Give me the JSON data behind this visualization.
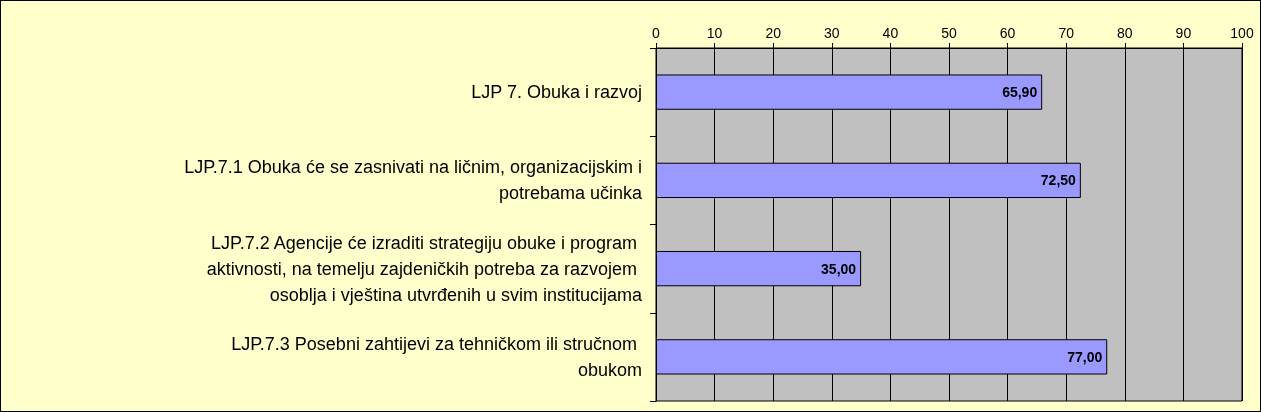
{
  "chart_data": {
    "type": "bar",
    "orientation": "horizontal",
    "categories": [
      "LJP 7. Obuka i razvoj",
      "LJP.7.1 Obuka će se zasnivati na ličnim, organizacijskim i potrebama učinka",
      "LJP.7.2 Agencije će izraditi strategiju obuke i program aktivnosti, na temelju zajdeničkih potreba za razvojem osoblja i vještina utvrđenih u svim institucijama",
      "LJP.7.3 Posebni zahtijevi za tehničkom ili stručnom obukom"
    ],
    "values": [
      65.9,
      72.5,
      35,
      77
    ],
    "value_labels": [
      "65,90",
      "72,50",
      "35,00",
      "77,00"
    ],
    "color": "#9999ff",
    "xlim": [
      0,
      100
    ],
    "xticks": [
      0,
      10,
      20,
      30,
      40,
      50,
      60,
      70,
      80,
      90,
      100
    ],
    "grid": "x"
  }
}
